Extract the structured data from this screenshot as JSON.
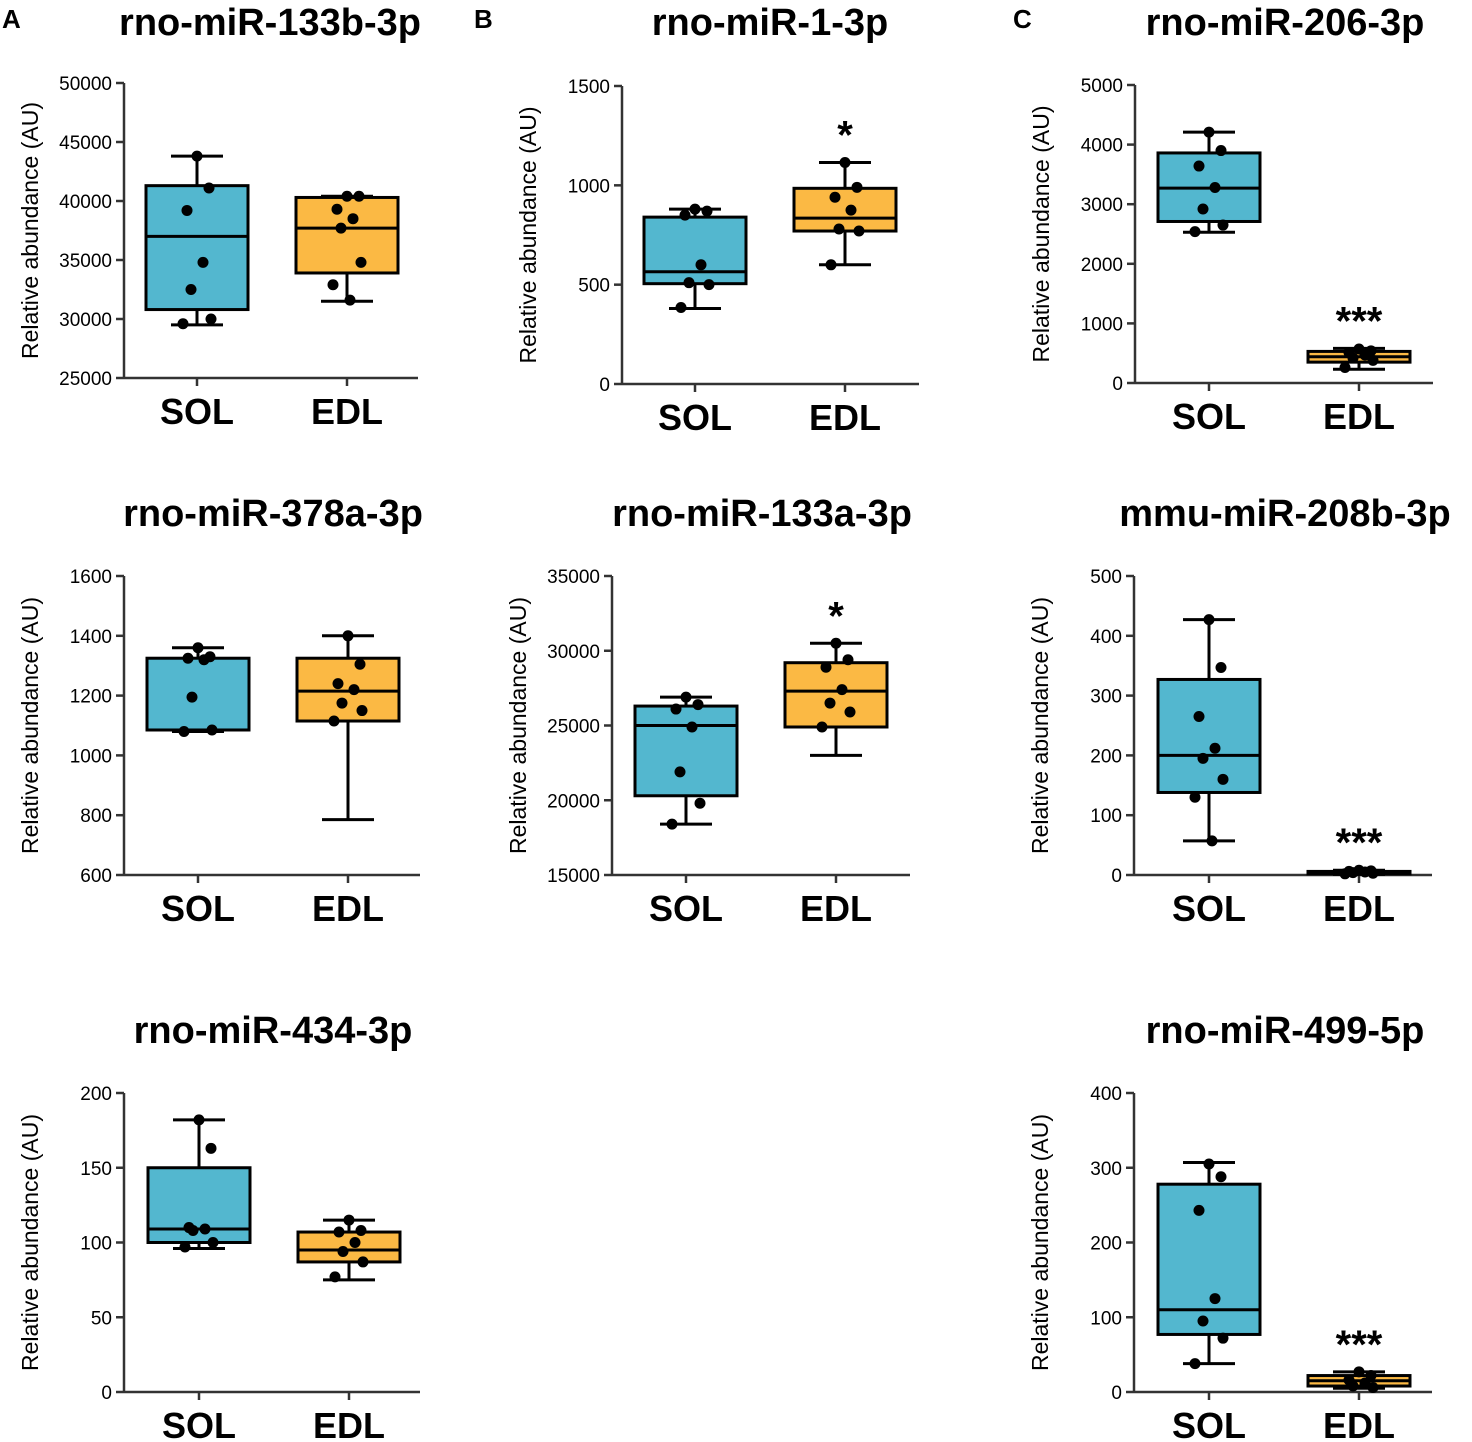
{
  "figure": {
    "panel_labels": [
      "A",
      "B",
      "C"
    ],
    "colors": {
      "sol": "#53b7cf",
      "edl": "#fbb944",
      "stroke": "#000000"
    }
  },
  "chart_data": [
    {
      "type": "box",
      "panel": "A",
      "title": "rno-miR-133b-3p",
      "ylabel": "Relative abundance (AU)",
      "ylim": [
        25000,
        50000
      ],
      "yticks": [
        25000,
        30000,
        35000,
        40000,
        45000,
        50000
      ],
      "categories": [
        "SOL",
        "EDL"
      ],
      "boxes": [
        {
          "name": "SOL",
          "min": 29500,
          "q1": 30800,
          "median": 37000,
          "q3": 41300,
          "max": 43800,
          "points": [
            43800,
            41100,
            39200,
            34800,
            32500,
            30000,
            29600
          ]
        },
        {
          "name": "EDL",
          "min": 31500,
          "q1": 33900,
          "median": 37700,
          "q3": 40300,
          "max": 40400,
          "points": [
            40400,
            40400,
            39300,
            38500,
            37700,
            34800,
            32900,
            31600
          ]
        }
      ],
      "significance": [
        "",
        ""
      ]
    },
    {
      "type": "box",
      "panel": "B",
      "title": "rno-miR-1-3p",
      "ylabel": "Relative abundance (AU)",
      "ylim": [
        0,
        1500
      ],
      "yticks": [
        0,
        500,
        1000,
        1500
      ],
      "categories": [
        "SOL",
        "EDL"
      ],
      "boxes": [
        {
          "name": "SOL",
          "min": 380,
          "q1": 505,
          "median": 565,
          "q3": 840,
          "max": 880,
          "points": [
            880,
            870,
            850,
            600,
            510,
            500,
            385
          ]
        },
        {
          "name": "EDL",
          "min": 600,
          "q1": 770,
          "median": 835,
          "q3": 985,
          "max": 1115,
          "points": [
            1115,
            990,
            940,
            875,
            780,
            770,
            600
          ]
        }
      ],
      "significance": [
        "",
        "*"
      ]
    },
    {
      "type": "box",
      "panel": "C",
      "title": "rno-miR-206-3p",
      "ylabel": "Relative abundance (AU)",
      "ylim": [
        0,
        5000
      ],
      "yticks": [
        0,
        1000,
        2000,
        3000,
        4000,
        5000
      ],
      "categories": [
        "SOL",
        "EDL"
      ],
      "boxes": [
        {
          "name": "SOL",
          "min": 2530,
          "q1": 2710,
          "median": 3270,
          "q3": 3860,
          "max": 4210,
          "points": [
            4210,
            3900,
            3640,
            3280,
            2920,
            2650,
            2540
          ]
        },
        {
          "name": "EDL",
          "min": 230,
          "q1": 350,
          "median": 440,
          "q3": 530,
          "max": 580,
          "points": [
            570,
            540,
            510,
            470,
            420,
            380,
            260
          ]
        }
      ],
      "significance": [
        "",
        "***"
      ]
    },
    {
      "type": "box",
      "panel": "A",
      "title": "rno-miR-378a-3p",
      "ylabel": "Relative abundance (AU)",
      "ylim": [
        600,
        1600
      ],
      "yticks": [
        600,
        800,
        1000,
        1200,
        1400,
        1600
      ],
      "categories": [
        "SOL",
        "EDL"
      ],
      "boxes": [
        {
          "name": "SOL",
          "min": 1080,
          "q1": 1085,
          "median": 1085,
          "q3": 1325,
          "max": 1360,
          "points": [
            1360,
            1330,
            1325,
            1320,
            1195,
            1085,
            1080
          ]
        },
        {
          "name": "EDL",
          "min": 785,
          "q1": 1115,
          "median": 1215,
          "q3": 1325,
          "max": 1400,
          "points": [
            1400,
            1305,
            1240,
            1220,
            1175,
            1150,
            1115
          ]
        }
      ],
      "significance": [
        "",
        ""
      ]
    },
    {
      "type": "box",
      "panel": "B",
      "title": "rno-miR-133a-3p",
      "ylabel": "Relative abundance (AU)",
      "ylim": [
        15000,
        35000
      ],
      "yticks": [
        15000,
        20000,
        25000,
        30000,
        35000
      ],
      "categories": [
        "SOL",
        "EDL"
      ],
      "boxes": [
        {
          "name": "SOL",
          "min": 18400,
          "q1": 20300,
          "median": 25000,
          "q3": 26300,
          "max": 26900,
          "points": [
            26900,
            26400,
            26100,
            24900,
            21900,
            19800,
            18400
          ]
        },
        {
          "name": "EDL",
          "min": 23000,
          "q1": 24900,
          "median": 27300,
          "q3": 29200,
          "max": 30500,
          "points": [
            30500,
            29400,
            28900,
            27400,
            26500,
            25900,
            24900
          ]
        }
      ],
      "significance": [
        "",
        "*"
      ]
    },
    {
      "type": "box",
      "panel": "C",
      "title": "mmu-miR-208b-3p",
      "ylabel": "Relative abundance (AU)",
      "ylim": [
        0,
        500
      ],
      "yticks": [
        0,
        100,
        200,
        300,
        400,
        500
      ],
      "categories": [
        "SOL",
        "EDL"
      ],
      "boxes": [
        {
          "name": "SOL",
          "min": 57,
          "q1": 138,
          "median": 200,
          "q3": 327,
          "max": 427,
          "points": [
            427,
            347,
            265,
            212,
            195,
            160,
            130,
            57
          ]
        },
        {
          "name": "EDL",
          "min": 1,
          "q1": 2,
          "median": 4,
          "q3": 6,
          "max": 8,
          "points": [
            8,
            7,
            6,
            5,
            4,
            3,
            2
          ]
        }
      ],
      "significance": [
        "",
        "***"
      ]
    },
    {
      "type": "box",
      "panel": "A",
      "title": "rno-miR-434-3p",
      "ylabel": "Relative abundance (AU)",
      "ylim": [
        0,
        200
      ],
      "yticks": [
        0,
        50,
        100,
        150,
        200
      ],
      "categories": [
        "SOL",
        "EDL"
      ],
      "boxes": [
        {
          "name": "SOL",
          "min": 96,
          "q1": 100,
          "median": 109,
          "q3": 150,
          "max": 182,
          "points": [
            182,
            163,
            110,
            109,
            108,
            100,
            97
          ]
        },
        {
          "name": "EDL",
          "min": 75,
          "q1": 87,
          "median": 95,
          "q3": 107,
          "max": 115,
          "points": [
            115,
            108,
            107,
            100,
            94,
            87,
            77
          ]
        }
      ],
      "significance": [
        "",
        ""
      ]
    },
    {
      "type": "box",
      "panel": "C",
      "title": "rno-miR-499-5p",
      "ylabel": "Relative abundance (AU)",
      "ylim": [
        0,
        400
      ],
      "yticks": [
        0,
        100,
        200,
        300,
        400
      ],
      "categories": [
        "SOL",
        "EDL"
      ],
      "boxes": [
        {
          "name": "SOL",
          "min": 38,
          "q1": 77,
          "median": 110,
          "q3": 278,
          "max": 307,
          "points": [
            305,
            288,
            243,
            125,
            95,
            72,
            38
          ]
        },
        {
          "name": "EDL",
          "min": 5,
          "q1": 8,
          "median": 15,
          "q3": 22,
          "max": 27,
          "points": [
            27,
            22,
            16,
            12,
            8,
            6
          ]
        }
      ],
      "significance": [
        "",
        "***"
      ]
    }
  ]
}
